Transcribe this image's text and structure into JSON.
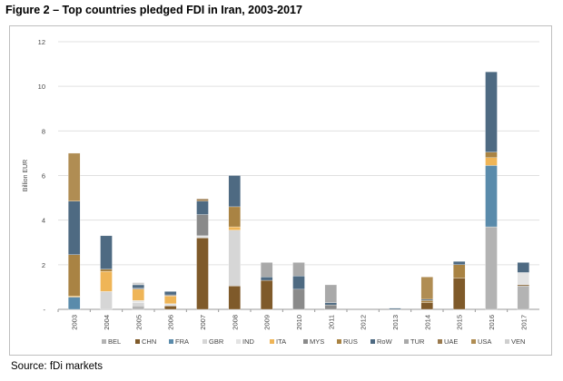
{
  "title": "Figure 2 – Top countries pledged FDI in Iran, 2003-2017",
  "source": "Source: fDi markets",
  "chart_data": {
    "type": "bar",
    "stacked": true,
    "ylabel": "Billion EUR",
    "xlabel": "",
    "ylim": [
      0,
      12
    ],
    "yticks": [
      0,
      2,
      4,
      6,
      8,
      10,
      12
    ],
    "ytick_labels": [
      "-",
      "2",
      "4",
      "6",
      "8",
      "10",
      "12"
    ],
    "grid": true,
    "legend_position": "bottom",
    "categories": [
      "2003",
      "2004",
      "2005",
      "2006",
      "2007",
      "2008",
      "2009",
      "2010",
      "2011",
      "2012",
      "2013",
      "2014",
      "2015",
      "2016",
      "2017"
    ],
    "series": [
      {
        "name": "BEL",
        "color": "#b3b3b3",
        "values": [
          0,
          0,
          0.15,
          0,
          0,
          0,
          0,
          0,
          0,
          0,
          0,
          0,
          0,
          3.7,
          1.05
        ]
      },
      {
        "name": "CHN",
        "color": "#7f5a2a",
        "values": [
          0,
          0,
          0,
          0.15,
          3.2,
          1.05,
          1.3,
          0,
          0,
          0,
          0,
          0.3,
          1.4,
          0,
          0.05
        ]
      },
      {
        "name": "FRA",
        "color": "#5a8bab",
        "values": [
          0.55,
          0,
          0,
          0,
          0,
          0,
          0,
          0,
          0,
          0,
          0,
          0,
          0,
          2.75,
          0
        ]
      },
      {
        "name": "GBR",
        "color": "#d6d6d6",
        "values": [
          0,
          0.8,
          0.15,
          0,
          0,
          2.5,
          0,
          0,
          0,
          0,
          0,
          0,
          0,
          0,
          0
        ]
      },
      {
        "name": "IND",
        "color": "#e3e3e3",
        "values": [
          0,
          0,
          0.1,
          0.1,
          0.1,
          0,
          0,
          0,
          0,
          0,
          0,
          0,
          0,
          0,
          0.55
        ]
      },
      {
        "name": "ITA",
        "color": "#efb557",
        "values": [
          0.05,
          0.9,
          0.5,
          0.35,
          0,
          0.15,
          0,
          0,
          0,
          0,
          0,
          0,
          0,
          0.35,
          0
        ]
      },
      {
        "name": "MYS",
        "color": "#8a8a8a",
        "values": [
          0,
          0,
          0.05,
          0.05,
          0.95,
          0,
          0,
          0.9,
          0.2,
          0,
          0,
          0,
          0,
          0,
          0
        ]
      },
      {
        "name": "RUS",
        "color": "#a98343",
        "values": [
          1.85,
          0.1,
          0,
          0,
          0,
          0.9,
          0,
          0,
          0,
          0,
          0,
          0.1,
          0.6,
          0.25,
          0
        ]
      },
      {
        "name": "RoW",
        "color": "#4e6a82",
        "values": [
          2.4,
          1.5,
          0.15,
          0.15,
          0.6,
          1.4,
          0.15,
          0.6,
          0.1,
          0,
          0.05,
          0.05,
          0.15,
          3.6,
          0.45
        ]
      },
      {
        "name": "TUR",
        "color": "#a9a9a9",
        "values": [
          0,
          0,
          0,
          0,
          0,
          0,
          0.65,
          0.6,
          0.8,
          0,
          0,
          0,
          0,
          0,
          0
        ]
      },
      {
        "name": "UAE",
        "color": "#9a7a4e",
        "values": [
          0,
          0,
          0,
          0,
          0.1,
          0,
          0,
          0,
          0,
          0,
          0,
          0,
          0,
          0,
          0
        ]
      },
      {
        "name": "USA",
        "color": "#b08d53",
        "values": [
          2.15,
          0,
          0,
          0,
          0,
          0,
          0,
          0,
          0,
          0,
          0,
          1.0,
          0,
          0,
          0
        ]
      },
      {
        "name": "VEN",
        "color": "#cfcfcf",
        "values": [
          0,
          0,
          0.1,
          0,
          0,
          0,
          0,
          0,
          0,
          0,
          0,
          0,
          0,
          0,
          0
        ]
      }
    ]
  }
}
